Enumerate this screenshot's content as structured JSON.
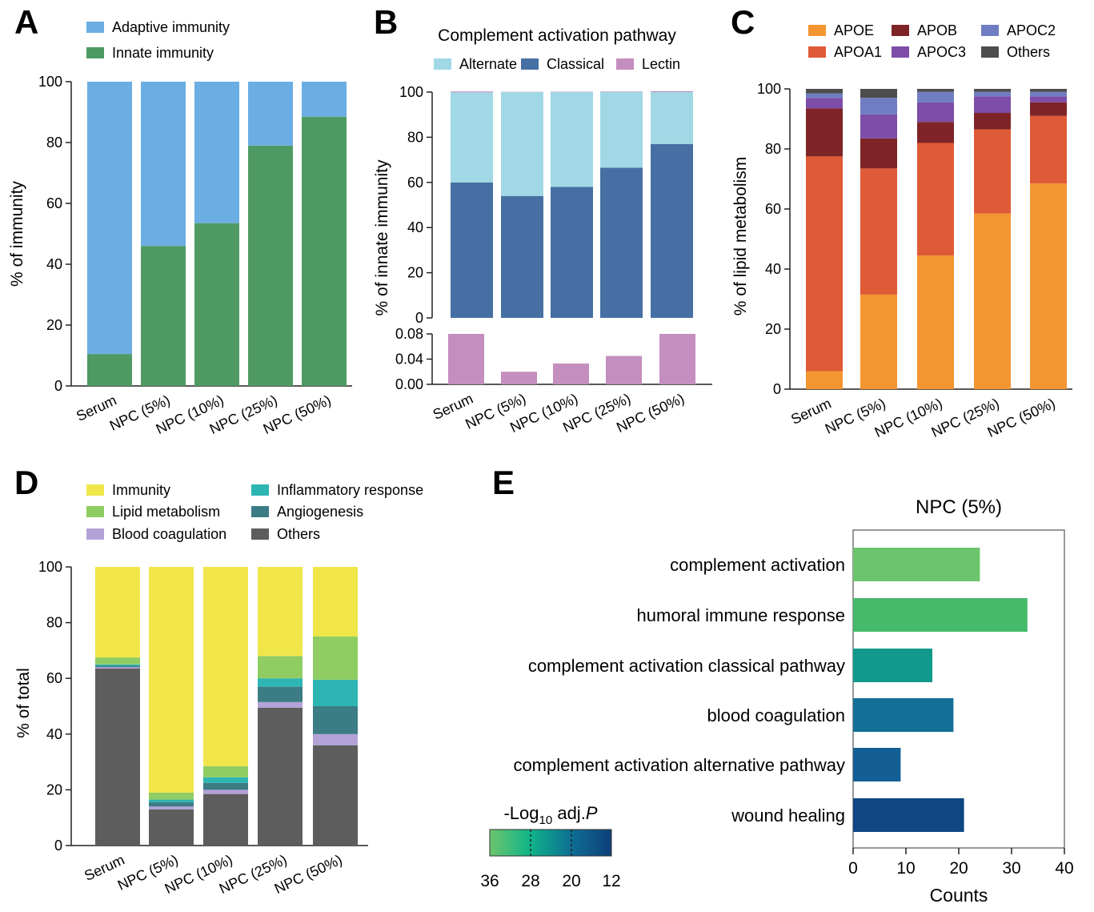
{
  "panels": {
    "A": {
      "letter": "A"
    },
    "B": {
      "letter": "B"
    },
    "C": {
      "letter": "C"
    },
    "D": {
      "letter": "D"
    },
    "E": {
      "letter": "E"
    }
  },
  "colorbar": {
    "label_prefix": "-Log",
    "label_sub": "10",
    "label_mid": " adj.",
    "label_italic": "P",
    "ticks": [
      "36",
      "28",
      "20",
      "12"
    ],
    "colors": [
      "#6cc56c",
      "#0fb489",
      "#0e6f93",
      "#0d3f7a"
    ]
  },
  "chart_data": [
    {
      "id": "A",
      "type": "bar",
      "stacked": true,
      "categories": [
        "Serum",
        "NPC (5%)",
        "NPC (10%)",
        "NPC (25%)",
        "NPC (50%)"
      ],
      "series": [
        {
          "name": "Innate immunity",
          "color": "#4f9a63",
          "values": [
            10.5,
            46,
            53.5,
            79,
            88.5
          ]
        },
        {
          "name": "Adaptive immunity",
          "color": "#6aaee3",
          "values": [
            89.5,
            54,
            46.5,
            21,
            11.5
          ]
        }
      ],
      "legend_order": [
        "Adaptive immunity",
        "Innate immunity"
      ],
      "title": "",
      "xlabel": "",
      "ylabel": "% of immunity",
      "ylim": [
        0,
        100
      ],
      "yticks": [
        "0",
        "20",
        "40",
        "60",
        "80",
        "100"
      ],
      "grid": false,
      "legend": "top-left"
    },
    {
      "id": "B",
      "type": "bar",
      "stacked": true,
      "broken_axis": true,
      "categories": [
        "Serum",
        "NPC (5%)",
        "NPC (10%)",
        "NPC (25%)",
        "NPC (50%)"
      ],
      "series": [
        {
          "name": "Classical",
          "color": "#4670a3",
          "values": [
            60,
            54,
            58,
            66.5,
            77
          ]
        },
        {
          "name": "Alternate",
          "color": "#a1d8e6",
          "values": [
            39.9,
            46,
            42,
            33.5,
            23
          ]
        },
        {
          "name": "Lectin",
          "color": "#c48ebe",
          "values": [
            0.08,
            0.02,
            0.033,
            0.045,
            0.08
          ]
        }
      ],
      "legend_order": [
        "Alternate",
        "Classical",
        "Lectin"
      ],
      "title": "Complement activation pathway",
      "xlabel": "",
      "ylabel": "% of innate immunity",
      "ylim_upper": [
        0,
        100
      ],
      "yticks_upper": [
        "0",
        "20",
        "40",
        "60",
        "80",
        "100"
      ],
      "ylim_lower": [
        0,
        0.08
      ],
      "yticks_lower": [
        "0.00",
        "0.04",
        "0.08"
      ],
      "grid": false,
      "legend": "top"
    },
    {
      "id": "C",
      "type": "bar",
      "stacked": true,
      "categories": [
        "Serum",
        "NPC (5%)",
        "NPC (10%)",
        "NPC (25%)",
        "NPC (50%)"
      ],
      "series": [
        {
          "name": "APOE",
          "color": "#f39530",
          "values": [
            6,
            31.5,
            44.5,
            58.5,
            68.5
          ]
        },
        {
          "name": "APOA1",
          "color": "#df5a36",
          "values": [
            71.5,
            42,
            37.5,
            28,
            22.5
          ]
        },
        {
          "name": "APOB",
          "color": "#7f2426",
          "values": [
            16,
            10,
            7,
            5.5,
            4.5
          ]
        },
        {
          "name": "APOC3",
          "color": "#7d4da8",
          "values": [
            3.5,
            8,
            6.5,
            5.5,
            2
          ]
        },
        {
          "name": "APOC2",
          "color": "#6f7ec2",
          "values": [
            1.5,
            5.5,
            3.5,
            1.5,
            1.5
          ]
        },
        {
          "name": "Others",
          "color": "#4d4d4d",
          "values": [
            1.5,
            3,
            1,
            1,
            1
          ]
        }
      ],
      "legend_order": [
        "APOE",
        "APOB",
        "APOC2",
        "APOA1",
        "APOC3",
        "Others"
      ],
      "title": "",
      "xlabel": "",
      "ylabel": "% of lipid metabolism",
      "ylim": [
        0,
        100
      ],
      "yticks": [
        "0",
        "20",
        "40",
        "60",
        "80",
        "100"
      ],
      "grid": false,
      "legend": "top"
    },
    {
      "id": "D",
      "type": "bar",
      "stacked": true,
      "categories": [
        "Serum",
        "NPC (5%)",
        "NPC (10%)",
        "NPC (25%)",
        "NPC (50%)"
      ],
      "series": [
        {
          "name": "Others",
          "color": "#5d5d5d",
          "values": [
            63.5,
            13,
            18.5,
            49.5,
            36
          ]
        },
        {
          "name": "Blood coagulation",
          "color": "#b3a2d8",
          "values": [
            0.5,
            1,
            1.5,
            2,
            4
          ]
        },
        {
          "name": "Angiogenesis",
          "color": "#3c7c84",
          "values": [
            0.5,
            1.5,
            2.5,
            5.5,
            10
          ]
        },
        {
          "name": "Inflammatory response",
          "color": "#2db5b3",
          "values": [
            0.5,
            1,
            2,
            3,
            9.5
          ]
        },
        {
          "name": "Lipid metabolism",
          "color": "#8fcd63",
          "values": [
            2.5,
            2.5,
            4,
            8,
            15.5
          ]
        },
        {
          "name": "Immunity",
          "color": "#f0e64a",
          "values": [
            32.5,
            81,
            71.5,
            32,
            25
          ]
        }
      ],
      "legend_order": [
        "Immunity",
        "Inflammatory response",
        "Lipid metabolism",
        "Angiogenesis",
        "Blood coagulation",
        "Others"
      ],
      "title": "",
      "xlabel": "",
      "ylabel": "% of total",
      "ylim": [
        0,
        100
      ],
      "yticks": [
        "0",
        "20",
        "40",
        "60",
        "80",
        "100"
      ],
      "grid": false,
      "legend": "top"
    },
    {
      "id": "E",
      "type": "bar",
      "orientation": "horizontal",
      "title": "NPC (5%)",
      "categories": [
        "complement activation",
        "humoral immune response",
        "complement activation classical pathway",
        "blood coagulation",
        "complement activation alternative pathway",
        "wound healing"
      ],
      "values": [
        24,
        33,
        15,
        19,
        9,
        21
      ],
      "colors": [
        "#6cc56c",
        "#46b96b",
        "#11998c",
        "#136f96",
        "#135f95",
        "#0f4683"
      ],
      "xlabel": "Counts",
      "ylabel": "",
      "xlim": [
        0,
        40
      ],
      "xticks": [
        "0",
        "10",
        "20",
        "30",
        "40"
      ],
      "grid": false,
      "legend": "bottom-left colorbar"
    }
  ]
}
